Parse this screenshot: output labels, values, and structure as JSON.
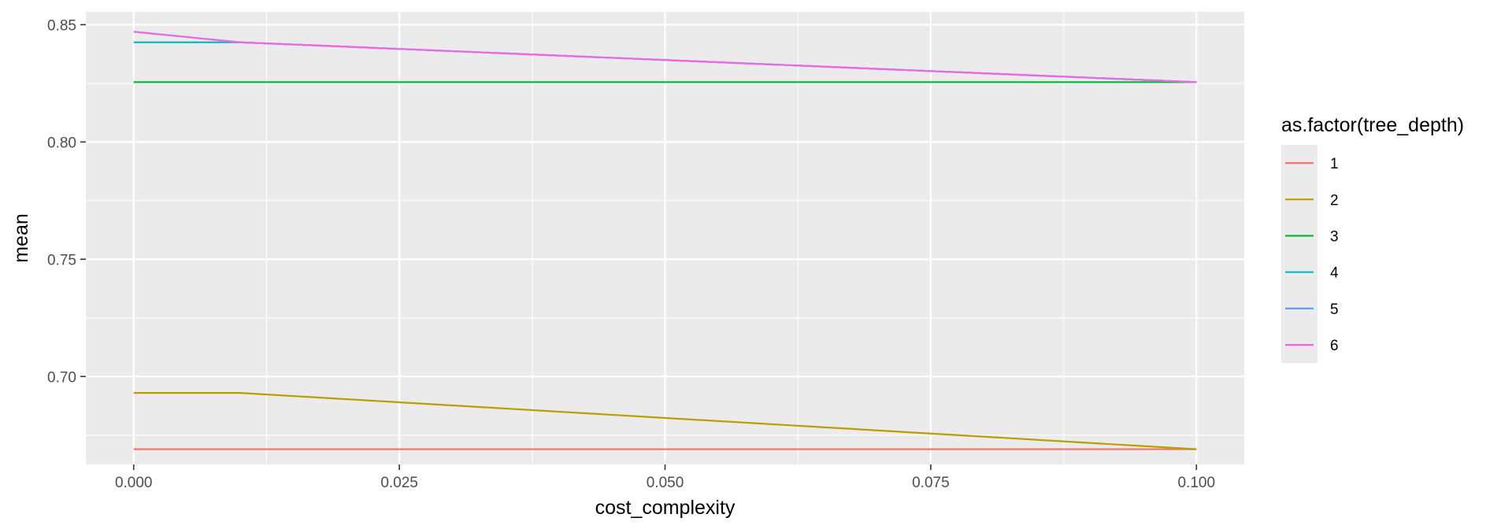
{
  "chart_data": {
    "type": "line",
    "title": "",
    "xlabel": "cost_complexity",
    "ylabel": "mean",
    "xlim": [
      -0.0045,
      0.1045
    ],
    "ylim": [
      0.6625,
      0.8555
    ],
    "x_ticks": [
      0.0,
      0.025,
      0.05,
      0.075,
      0.1
    ],
    "x_tick_labels": [
      "0.000",
      "0.025",
      "0.050",
      "0.075",
      "0.100"
    ],
    "y_ticks": [
      0.7,
      0.75,
      0.8,
      0.85
    ],
    "y_tick_labels": [
      "0.70",
      "0.75",
      "0.80",
      "0.85"
    ],
    "grid": true,
    "legend": {
      "title": "as.factor(tree_depth)",
      "position": "right"
    },
    "x": [
      0.0,
      0.01,
      0.1
    ],
    "series": [
      {
        "name": "1",
        "color": "#F8766D",
        "values": [
          0.669,
          0.669,
          0.669
        ]
      },
      {
        "name": "2",
        "color": "#B79F00",
        "values": [
          0.693,
          0.693,
          0.669
        ]
      },
      {
        "name": "3",
        "color": "#00BA38",
        "values": [
          0.8255,
          0.8255,
          0.8255
        ]
      },
      {
        "name": "4",
        "color": "#00BFC4",
        "values": [
          0.8425,
          0.8425,
          0.8255
        ]
      },
      {
        "name": "5",
        "color": "#619CFF",
        "values": [
          0.847,
          0.8425,
          0.8255
        ]
      },
      {
        "name": "6",
        "color": "#F564E3",
        "values": [
          0.847,
          0.8425,
          0.8255
        ]
      }
    ]
  }
}
